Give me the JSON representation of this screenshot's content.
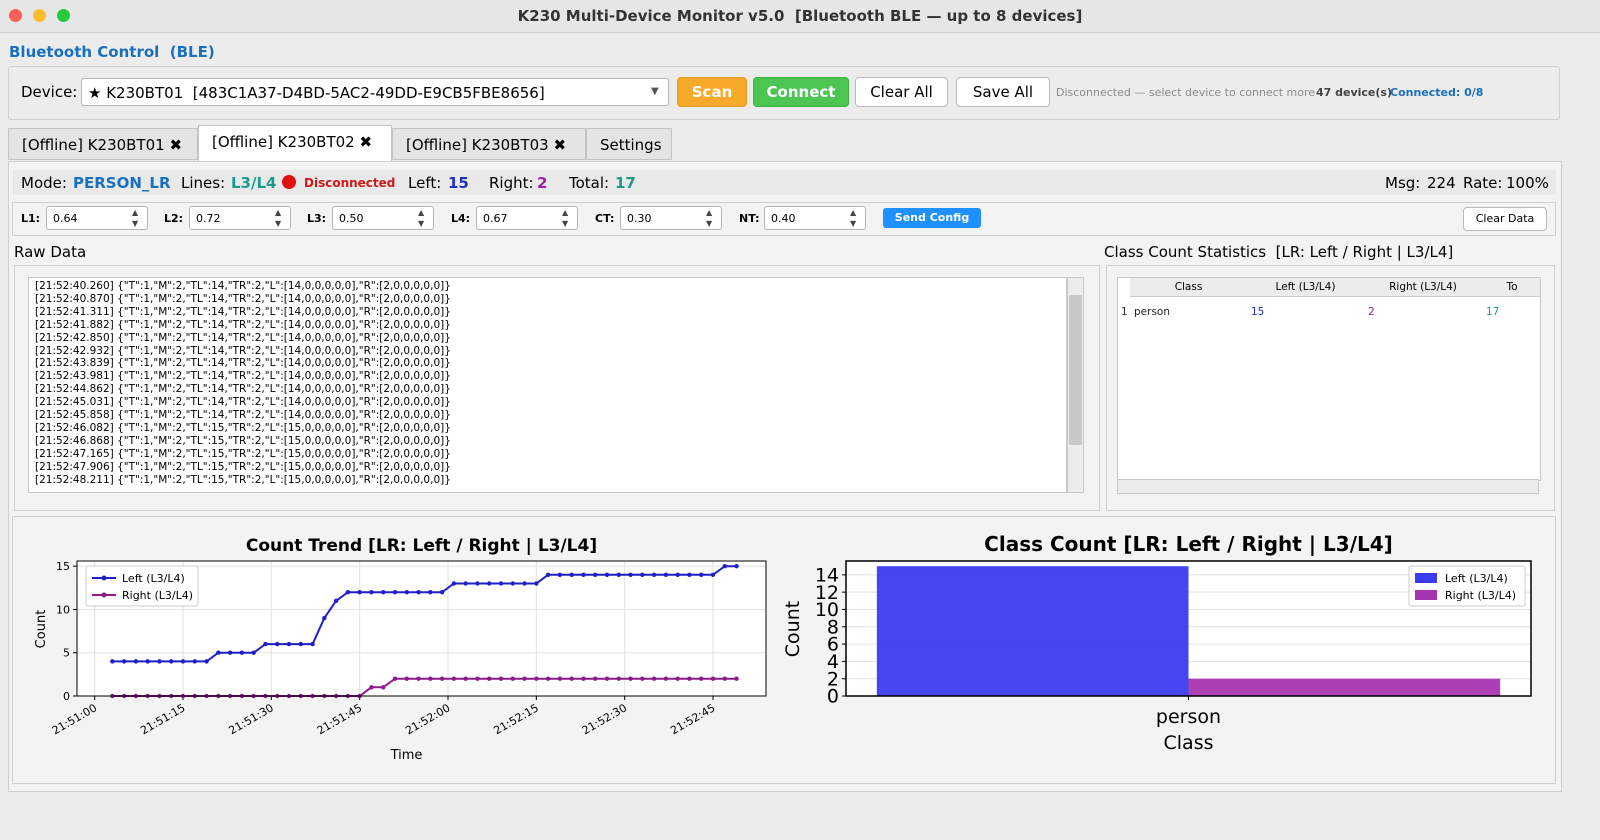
{
  "window": {
    "title": "K230 Multi-Device Monitor v5.0  [Bluetooth BLE — up to 8 devices]"
  },
  "toolbar": {
    "section": "Bluetooth Control  (BLE)",
    "device_label": "Device:",
    "device": "★ K230BT01  [483C1A37-D4BD-5AC2-49DD-E9CB5FBE8656]",
    "buttons": [
      "Scan",
      "Connect",
      "Clear All",
      "Save All"
    ],
    "status": "Disconnected — select device to connect more",
    "device_count": "47 device(s)",
    "connected": "Connected: 0/8"
  },
  "tabs": [
    "[Offline] K230BT01",
    "[Offline] K230BT02",
    "[Offline] K230BT03",
    "Settings"
  ],
  "status": {
    "mode_label": "Mode:",
    "mode": "PERSON_LR",
    "lines_label": "Lines:",
    "lines": "L3/L4",
    "state": "Disconnected",
    "left_label": "Left:",
    "left": 15,
    "right_label": "Right:",
    "right": 2,
    "total_label": "Total:",
    "total": 17,
    "msg_label": "Msg:",
    "msg": 224,
    "rate_label": "Rate:",
    "rate": "100%"
  },
  "config": {
    "fields": [
      {
        "label": "L1:",
        "value": "0.64"
      },
      {
        "label": "L2:",
        "value": "0.72"
      },
      {
        "label": "L3:",
        "value": "0.50"
      },
      {
        "label": "L4:",
        "value": "0.67"
      },
      {
        "label": "CT:",
        "value": "0.30"
      },
      {
        "label": "NT:",
        "value": "0.40"
      }
    ],
    "send": "Send Config",
    "clear": "Clear Data"
  },
  "raw": {
    "title": "Raw Data",
    "lines": [
      "[21:52:40.260] {\"T\":1,\"M\":2,\"TL\":14,\"TR\":2,\"L\":[14,0,0,0,0,0],\"R\":[2,0,0,0,0,0]}",
      "[21:52:40.870] {\"T\":1,\"M\":2,\"TL\":14,\"TR\":2,\"L\":[14,0,0,0,0,0],\"R\":[2,0,0,0,0,0]}",
      "[21:52:41.311] {\"T\":1,\"M\":2,\"TL\":14,\"TR\":2,\"L\":[14,0,0,0,0,0],\"R\":[2,0,0,0,0,0]}",
      "[21:52:41.882] {\"T\":1,\"M\":2,\"TL\":14,\"TR\":2,\"L\":[14,0,0,0,0,0],\"R\":[2,0,0,0,0,0]}",
      "[21:52:42.850] {\"T\":1,\"M\":2,\"TL\":14,\"TR\":2,\"L\":[14,0,0,0,0,0],\"R\":[2,0,0,0,0,0]}",
      "[21:52:42.932] {\"T\":1,\"M\":2,\"TL\":14,\"TR\":2,\"L\":[14,0,0,0,0,0],\"R\":[2,0,0,0,0,0]}",
      "[21:52:43.839] {\"T\":1,\"M\":2,\"TL\":14,\"TR\":2,\"L\":[14,0,0,0,0,0],\"R\":[2,0,0,0,0,0]}",
      "[21:52:43.981] {\"T\":1,\"M\":2,\"TL\":14,\"TR\":2,\"L\":[14,0,0,0,0,0],\"R\":[2,0,0,0,0,0]}",
      "[21:52:44.862] {\"T\":1,\"M\":2,\"TL\":14,\"TR\":2,\"L\":[14,0,0,0,0,0],\"R\":[2,0,0,0,0,0]}",
      "[21:52:45.031] {\"T\":1,\"M\":2,\"TL\":14,\"TR\":2,\"L\":[14,0,0,0,0,0],\"R\":[2,0,0,0,0,0]}",
      "[21:52:45.858] {\"T\":1,\"M\":2,\"TL\":14,\"TR\":2,\"L\":[14,0,0,0,0,0],\"R\":[2,0,0,0,0,0]}",
      "[21:52:46.082] {\"T\":1,\"M\":2,\"TL\":15,\"TR\":2,\"L\":[15,0,0,0,0,0],\"R\":[2,0,0,0,0,0]}",
      "[21:52:46.868] {\"T\":1,\"M\":2,\"TL\":15,\"TR\":2,\"L\":[15,0,0,0,0,0],\"R\":[2,0,0,0,0,0]}",
      "[21:52:47.165] {\"T\":1,\"M\":2,\"TL\":15,\"TR\":2,\"L\":[15,0,0,0,0,0],\"R\":[2,0,0,0,0,0]}",
      "[21:52:47.906] {\"T\":1,\"M\":2,\"TL\":15,\"TR\":2,\"L\":[15,0,0,0,0,0],\"R\":[2,0,0,0,0,0]}",
      "[21:52:48.211] {\"T\":1,\"M\":2,\"TL\":15,\"TR\":2,\"L\":[15,0,0,0,0,0],\"R\":[2,0,0,0,0,0]}"
    ]
  },
  "stats": {
    "title": "Class Count Statistics  [LR: Left / Right | L3/L4]",
    "table": {
      "header": [
        "Class",
        "Left (L3/L4)",
        "Right (L3/L4)",
        "To"
      ],
      "rows": [
        [
          "1",
          "person",
          "15",
          "2",
          "17"
        ]
      ]
    }
  },
  "chart_data": [
    {
      "type": "line",
      "title": "Count Trend  [LR: Left / Right | L3/L4]",
      "x_label": "Time",
      "y_label": "Count",
      "x": [
        "21:51:03",
        "21:51:05",
        "21:51:07",
        "21:51:09",
        "21:51:11",
        "21:51:13",
        "21:51:15",
        "21:51:17",
        "21:51:19",
        "21:51:21",
        "21:51:23",
        "21:51:25",
        "21:51:27",
        "21:51:29",
        "21:51:31",
        "21:51:33",
        "21:51:35",
        "21:51:37",
        "21:51:39",
        "21:51:41",
        "21:51:43",
        "21:51:45",
        "21:51:47",
        "21:51:49",
        "21:51:51",
        "21:51:53",
        "21:51:55",
        "21:51:57",
        "21:51:59",
        "21:52:01",
        "21:52:03",
        "21:52:05",
        "21:52:07",
        "21:52:09",
        "21:52:11",
        "21:52:13",
        "21:52:15",
        "21:52:17",
        "21:52:19",
        "21:52:21",
        "21:52:23",
        "21:52:25",
        "21:52:27",
        "21:52:29",
        "21:52:31",
        "21:52:33",
        "21:52:35",
        "21:52:37",
        "21:52:39",
        "21:52:41",
        "21:52:43",
        "21:52:45",
        "21:52:47",
        "21:52:49"
      ],
      "series": [
        {
          "name": "Left (L3/L4)",
          "color": "#1f1fc8",
          "values": [
            4,
            4,
            4,
            4,
            4,
            4,
            4,
            4,
            4,
            5,
            5,
            5,
            5,
            6,
            6,
            6,
            6,
            6,
            9,
            11,
            12,
            12,
            12,
            12,
            12,
            12,
            12,
            12,
            12,
            13,
            13,
            13,
            13,
            13,
            13,
            13,
            13,
            14,
            14,
            14,
            14,
            14,
            14,
            14,
            14,
            14,
            14,
            14,
            14,
            14,
            14,
            14,
            15,
            15
          ]
        },
        {
          "name": "Right (L3/L4)",
          "color": "#8b1a8b",
          "values": [
            0,
            0,
            0,
            0,
            0,
            0,
            0,
            0,
            0,
            0,
            0,
            0,
            0,
            0,
            0,
            0,
            0,
            0,
            0,
            0,
            0,
            0,
            1,
            1,
            2,
            2,
            2,
            2,
            2,
            2,
            2,
            2,
            2,
            2,
            2,
            2,
            2,
            2,
            2,
            2,
            2,
            2,
            2,
            2,
            2,
            2,
            2,
            2,
            2,
            2,
            2,
            2,
            2,
            2
          ]
        }
      ],
      "xlim": [
        "21:50:57",
        "21:52:54"
      ],
      "xticks": [
        "21:51:00",
        "21:51:15",
        "21:51:30",
        "21:51:45",
        "21:52:00",
        "21:52:15",
        "21:52:30",
        "21:52:45"
      ],
      "ylim": [
        0,
        15.6
      ],
      "yticks": [
        0,
        5,
        10,
        15
      ],
      "grid": true,
      "legend": "upper-left"
    },
    {
      "type": "bar",
      "title": "Class Count  [LR: Left / Right | L3/L4]",
      "x_label": "Class",
      "y_label": "Count",
      "categories": [
        "person"
      ],
      "series": [
        {
          "name": "Left (L3/L4)",
          "color": "#3b3bf0",
          "values": [
            15
          ]
        },
        {
          "name": "Right (L3/L4)",
          "color": "#a835b0",
          "values": [
            2
          ]
        }
      ],
      "ylim": [
        0,
        15.6
      ],
      "yticks": [
        0,
        2,
        4,
        6,
        8,
        10,
        12,
        14
      ],
      "grid": true,
      "legend": "upper-right"
    }
  ]
}
